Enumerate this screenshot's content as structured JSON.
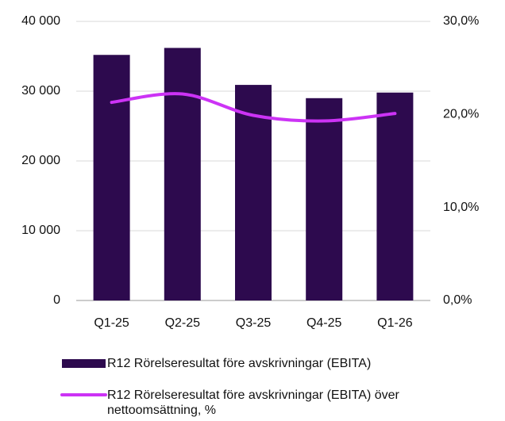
{
  "chart_data": {
    "type": "bar",
    "categories": [
      "Q1-25",
      "Q2-25",
      "Q3-25",
      "Q4-25",
      "Q1-26"
    ],
    "series": [
      {
        "name": "R12 Rörelseresultat före avskrivningar (EBITA)",
        "color": "#2d0a4e",
        "type": "bar",
        "values": [
          35200,
          36200,
          30900,
          29000,
          29800
        ]
      },
      {
        "name": "R12 Rörelseresultat före avskrivningar (EBITA) över nettoomsättning, %",
        "color": "#cc33f5",
        "type": "line",
        "axis": "y2",
        "values": [
          21.3,
          22.2,
          19.9,
          19.3,
          20.1
        ]
      }
    ],
    "ylim": [
      0,
      40000
    ],
    "yticks": [
      {
        "value": 0,
        "label": "0"
      },
      {
        "value": 10000,
        "label": "10 000"
      },
      {
        "value": 20000,
        "label": "20 000"
      },
      {
        "value": 30000,
        "label": "30 000"
      },
      {
        "value": 40000,
        "label": "40 000"
      }
    ],
    "y2lim": [
      0,
      30
    ],
    "y2ticks": [
      {
        "value": 0,
        "label": "0,0%"
      },
      {
        "value": 10,
        "label": "10,0%"
      },
      {
        "value": 20,
        "label": "20,0%"
      },
      {
        "value": 30,
        "label": "30,0%"
      }
    ],
    "grid": true
  }
}
